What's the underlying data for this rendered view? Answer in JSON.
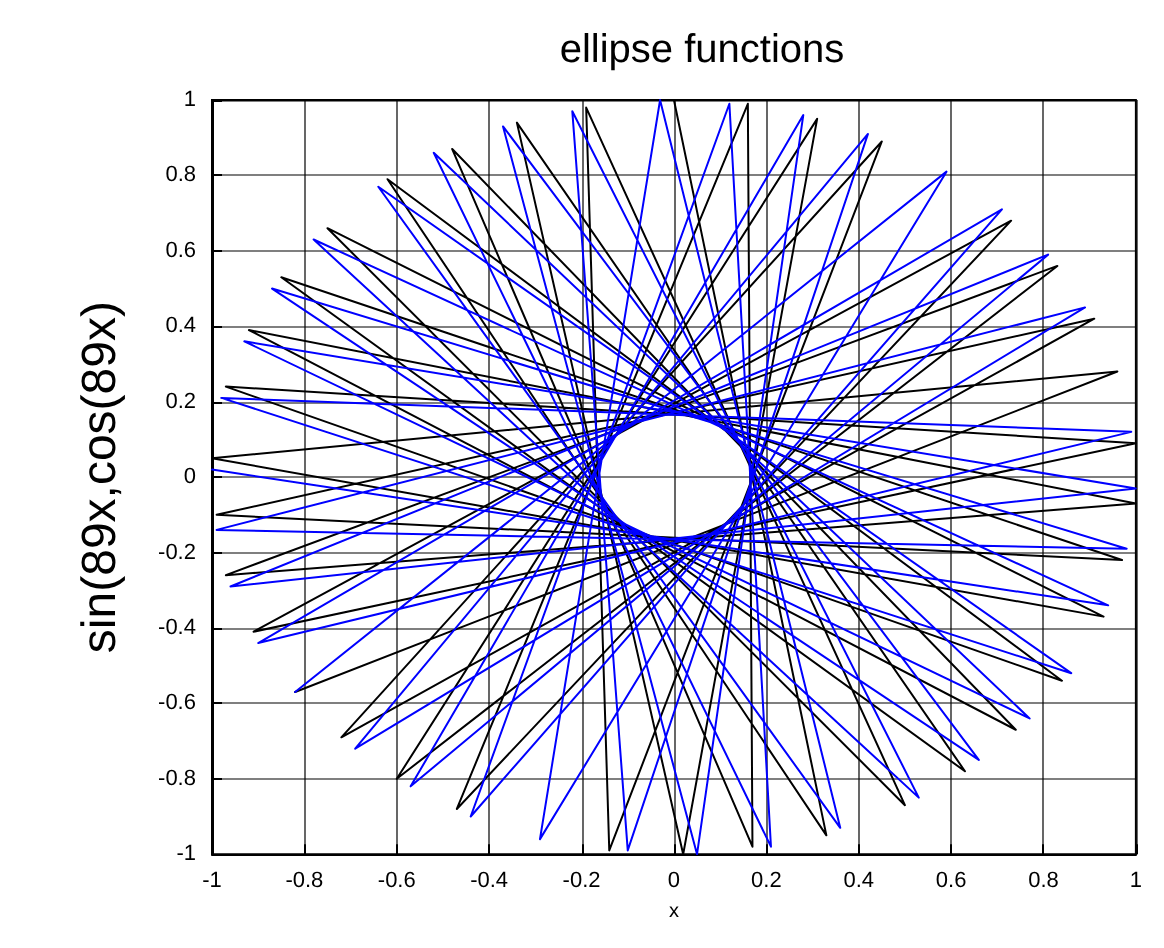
{
  "chart_data": {
    "type": "line",
    "title": "ellipse functions",
    "xlabel": "x",
    "ylabel": "sin(89x,cos(89x)",
    "xlim": [
      -1,
      1
    ],
    "ylim": [
      -1,
      1
    ],
    "xticks": [
      -1,
      -0.8,
      -0.6,
      -0.4,
      -0.2,
      0,
      0.2,
      0.4,
      0.6,
      0.8,
      1
    ],
    "yticks": [
      -1,
      -0.8,
      -0.6,
      -0.4,
      -0.2,
      0,
      0.2,
      0.4,
      0.6,
      0.8,
      1
    ],
    "grid": true,
    "marker": "none",
    "line_style": "solid",
    "series": [
      {
        "color": "#000000",
        "x": [
          0,
          0.33,
          -0.62,
          0.84,
          -0.97,
          1,
          -0.91,
          0.73,
          -0.47,
          0.16,
          0.17,
          -0.48,
          0.74,
          -0.92,
          1,
          -0.97,
          0.83,
          -0.6,
          0.31,
          0.02,
          -0.34,
          0.63,
          -0.85,
          0.97,
          -0.99,
          0.91,
          -0.72,
          0.45,
          -0.14,
          -0.19,
          0.5,
          -0.75,
          0.93,
          -1,
          0.96,
          -0.82
        ],
        "values": [
          1,
          -0.95,
          0.79,
          -0.54,
          0.24,
          0.09,
          -0.41,
          0.68,
          -0.88,
          0.99,
          -0.98,
          0.87,
          -0.67,
          0.39,
          -0.07,
          -0.26,
          0.56,
          -0.8,
          0.95,
          -1,
          0.94,
          -0.78,
          0.53,
          -0.22,
          -0.1,
          0.42,
          -0.69,
          0.89,
          -0.99,
          0.98,
          -0.87,
          0.66,
          -0.37,
          0.05,
          0.28,
          -0.57
        ]
      },
      {
        "color": "#0000ff",
        "x": [
          -0.82,
          0.59,
          -0.29,
          -0.03,
          0.36,
          -0.64,
          0.86,
          -0.98,
          0.99,
          -0.9,
          0.71,
          -0.44,
          0.12,
          0.21,
          -0.52,
          0.77,
          -0.93,
          1,
          -0.96,
          0.81,
          -0.57,
          0.28,
          0.05,
          -0.37,
          0.66,
          -0.87,
          0.98,
          -0.99,
          0.89,
          -0.69,
          0.42,
          -0.1,
          -0.22,
          0.53,
          -0.78,
          0.94,
          -1
        ],
        "values": [
          -0.57,
          0.81,
          -0.96,
          1,
          -0.93,
          0.77,
          -0.52,
          0.21,
          0.12,
          -0.44,
          0.71,
          -0.9,
          0.99,
          -0.98,
          0.86,
          -0.64,
          0.36,
          -0.03,
          -0.29,
          0.59,
          -0.82,
          0.96,
          -1,
          0.93,
          -0.75,
          0.5,
          -0.19,
          -0.14,
          0.45,
          -0.72,
          0.91,
          -0.99,
          0.97,
          -0.85,
          0.63,
          -0.34,
          0.02
        ]
      }
    ]
  }
}
